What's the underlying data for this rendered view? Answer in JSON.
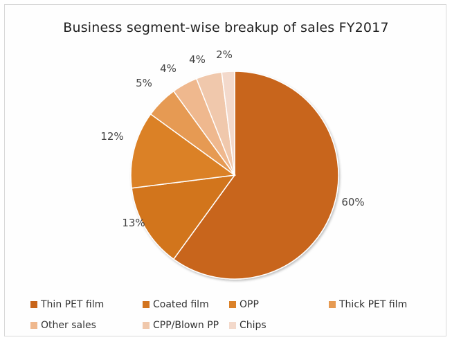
{
  "chart_data": {
    "type": "pie",
    "title": "Business segment-wise breakup of sales FY2017",
    "categories": [
      "Thin PET film",
      "Coated film",
      "OPP",
      "Thick PET film",
      "Other sales",
      "CPP/Blown PP",
      "Chips"
    ],
    "values": [
      60,
      13,
      12,
      5,
      4,
      4,
      2
    ],
    "labels": [
      "60%",
      "13%",
      "12%",
      "5%",
      "4%",
      "4%",
      "2%"
    ],
    "colors": [
      "#c8651a",
      "#d2741f",
      "#db8128",
      "#e69a52",
      "#efb88e",
      "#f0c8ac",
      "#f3d9cb"
    ],
    "legend_position": "bottom"
  }
}
